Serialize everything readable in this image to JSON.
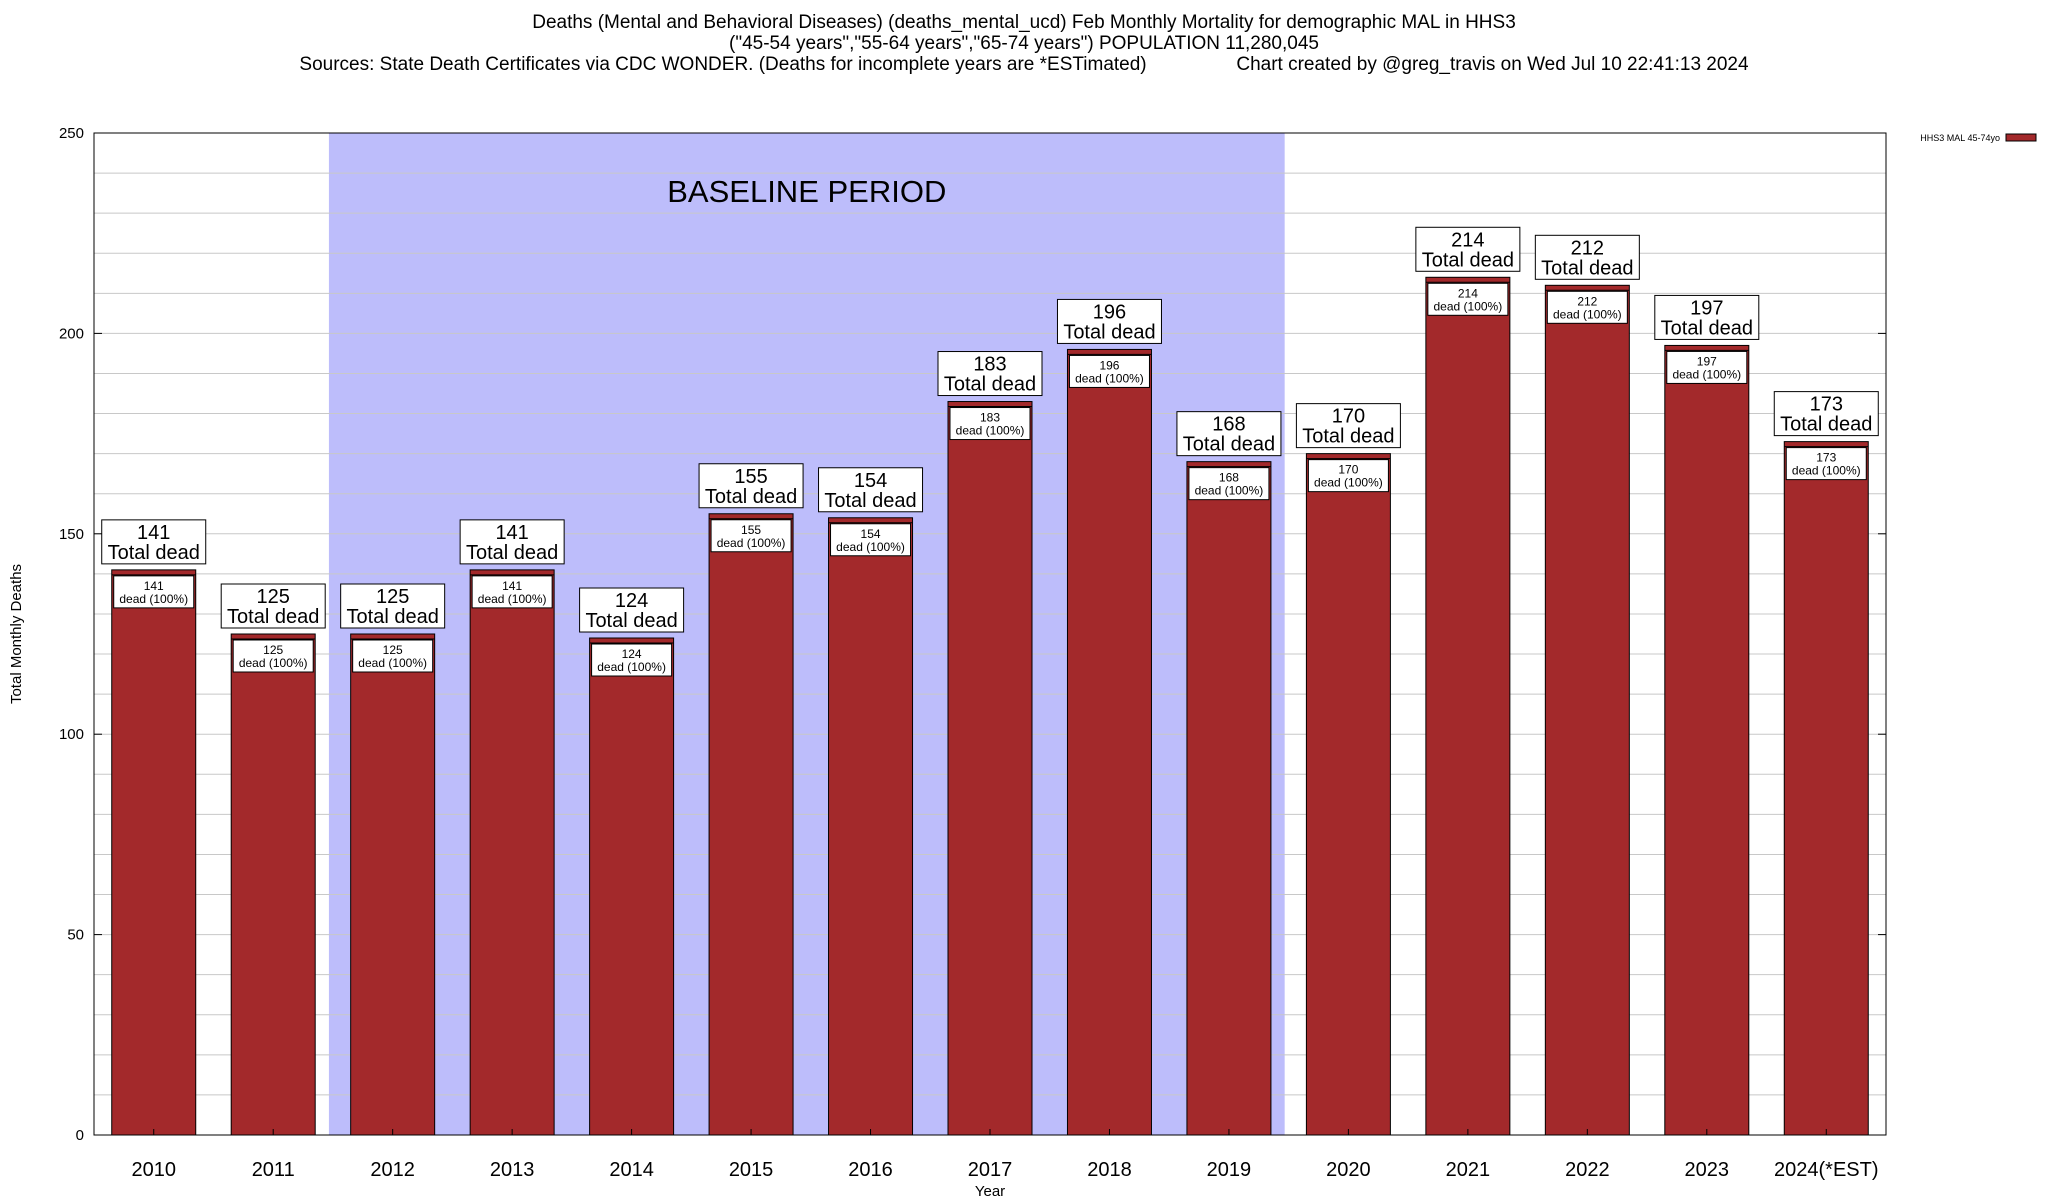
{
  "header": {
    "line1": "Deaths (Mental and Behavioral Diseases) (deaths_mental_ucd) Feb Monthly Mortality for demographic MAL in HHS3",
    "line2": "(\"45-54 years\",\"55-64 years\",\"65-74 years\") POPULATION 11,280,045",
    "line3": "Sources: State Death Certificates via CDC WONDER. (Deaths for incomplete years are *ESTimated)                 Chart created by @greg_travis on Wed Jul 10 22:41:13 2024"
  },
  "chart_data": {
    "type": "bar",
    "xlabel": "Year",
    "ylabel": "Total Monthly Deaths",
    "ylim": [
      0,
      250
    ],
    "yticks": [
      0,
      50,
      100,
      150,
      200,
      250
    ],
    "grid": true,
    "legend": {
      "position": "top-right",
      "label": "HHS3 MAL 45-74yo"
    },
    "categories": [
      "2010",
      "2011",
      "2012",
      "2013",
      "2014",
      "2015",
      "2016",
      "2017",
      "2018",
      "2019",
      "2020",
      "2021",
      "2022",
      "2023",
      "2024(*EST)"
    ],
    "series": [
      {
        "name": "HHS3 MAL 45-74yo",
        "values": [
          141,
          125,
          125,
          141,
          124,
          155,
          154,
          183,
          196,
          168,
          170,
          214,
          212,
          197,
          173
        ]
      }
    ],
    "total_label_suffix": "Total dead",
    "inner_label_suffix": "dead (100%)",
    "baseline": {
      "label": "BASELINE PERIOD",
      "from": "2012",
      "to": "2019"
    },
    "colors": {
      "bar": "#a3292b",
      "baseline": "#bdbdfb",
      "grid": "#c8c8c8"
    }
  }
}
